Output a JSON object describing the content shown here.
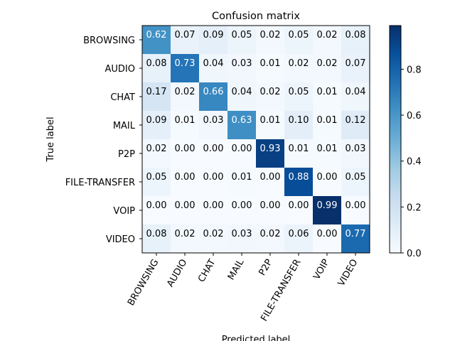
{
  "chart_data": {
    "type": "heatmap",
    "title": "Confusion matrix",
    "xlabel": "Predicted label",
    "ylabel": "True label",
    "row_labels": [
      "BROWSING",
      "AUDIO",
      "CHAT",
      "MAIL",
      "P2P",
      "FILE-TRANSFER",
      "VOIP",
      "VIDEO"
    ],
    "col_labels": [
      "BROWSING",
      "AUDIO",
      "CHAT",
      "MAIL",
      "P2P",
      "FILE-TRANSFER",
      "VOIP",
      "VIDEO"
    ],
    "values": [
      [
        0.62,
        0.07,
        0.09,
        0.05,
        0.02,
        0.05,
        0.02,
        0.08
      ],
      [
        0.08,
        0.73,
        0.04,
        0.03,
        0.01,
        0.02,
        0.02,
        0.07
      ],
      [
        0.17,
        0.02,
        0.66,
        0.04,
        0.02,
        0.05,
        0.01,
        0.04
      ],
      [
        0.09,
        0.01,
        0.03,
        0.63,
        0.01,
        0.1,
        0.01,
        0.12
      ],
      [
        0.02,
        0.0,
        0.0,
        0.0,
        0.93,
        0.01,
        0.01,
        0.03
      ],
      [
        0.05,
        0.0,
        0.0,
        0.01,
        0.0,
        0.88,
        0.0,
        0.05
      ],
      [
        0.0,
        0.0,
        0.0,
        0.0,
        0.0,
        0.0,
        0.99,
        0.0
      ],
      [
        0.08,
        0.02,
        0.02,
        0.03,
        0.02,
        0.06,
        0.0,
        0.77
      ]
    ],
    "colormap": "Blues",
    "color_range": [
      0.0,
      0.99
    ],
    "colorbar_ticks": [
      "0.0",
      "0.2",
      "0.4",
      "0.6",
      "0.8"
    ],
    "grid": false
  }
}
